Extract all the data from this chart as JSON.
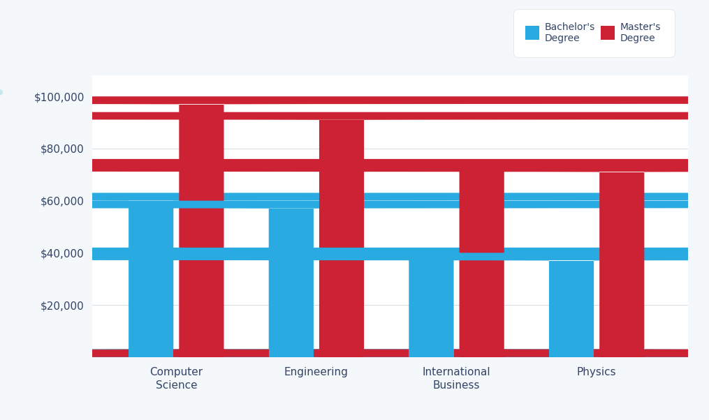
{
  "categories": [
    "Computer\nScience",
    "Engineering",
    "International\nBusiness",
    "Physics"
  ],
  "bachelor_values": [
    63000,
    60000,
    42000,
    40000
  ],
  "master_values": [
    100000,
    94000,
    76000,
    74000
  ],
  "bachelor_color": "#29ABE2",
  "master_color": "#CC2233",
  "bachelor_label": "Bachelor's\nDegree",
  "master_label": "Master's\nDegree",
  "ylim": [
    0,
    108000
  ],
  "yticks": [
    20000,
    40000,
    60000,
    80000,
    100000
  ],
  "ytick_labels": [
    "$20,000",
    "$40,000",
    "$60,000",
    "$80,000",
    "$100,000"
  ],
  "background_color": "#f5f8fa",
  "plot_bg_color": "#ffffff",
  "bar_width": 0.32,
  "grid_color": "#d8dee4",
  "tick_label_color": "#334466",
  "tick_label_fontsize": 11,
  "legend_fontsize": 10,
  "curve_color": "#c8e8f0",
  "curve_linewidth": 6
}
